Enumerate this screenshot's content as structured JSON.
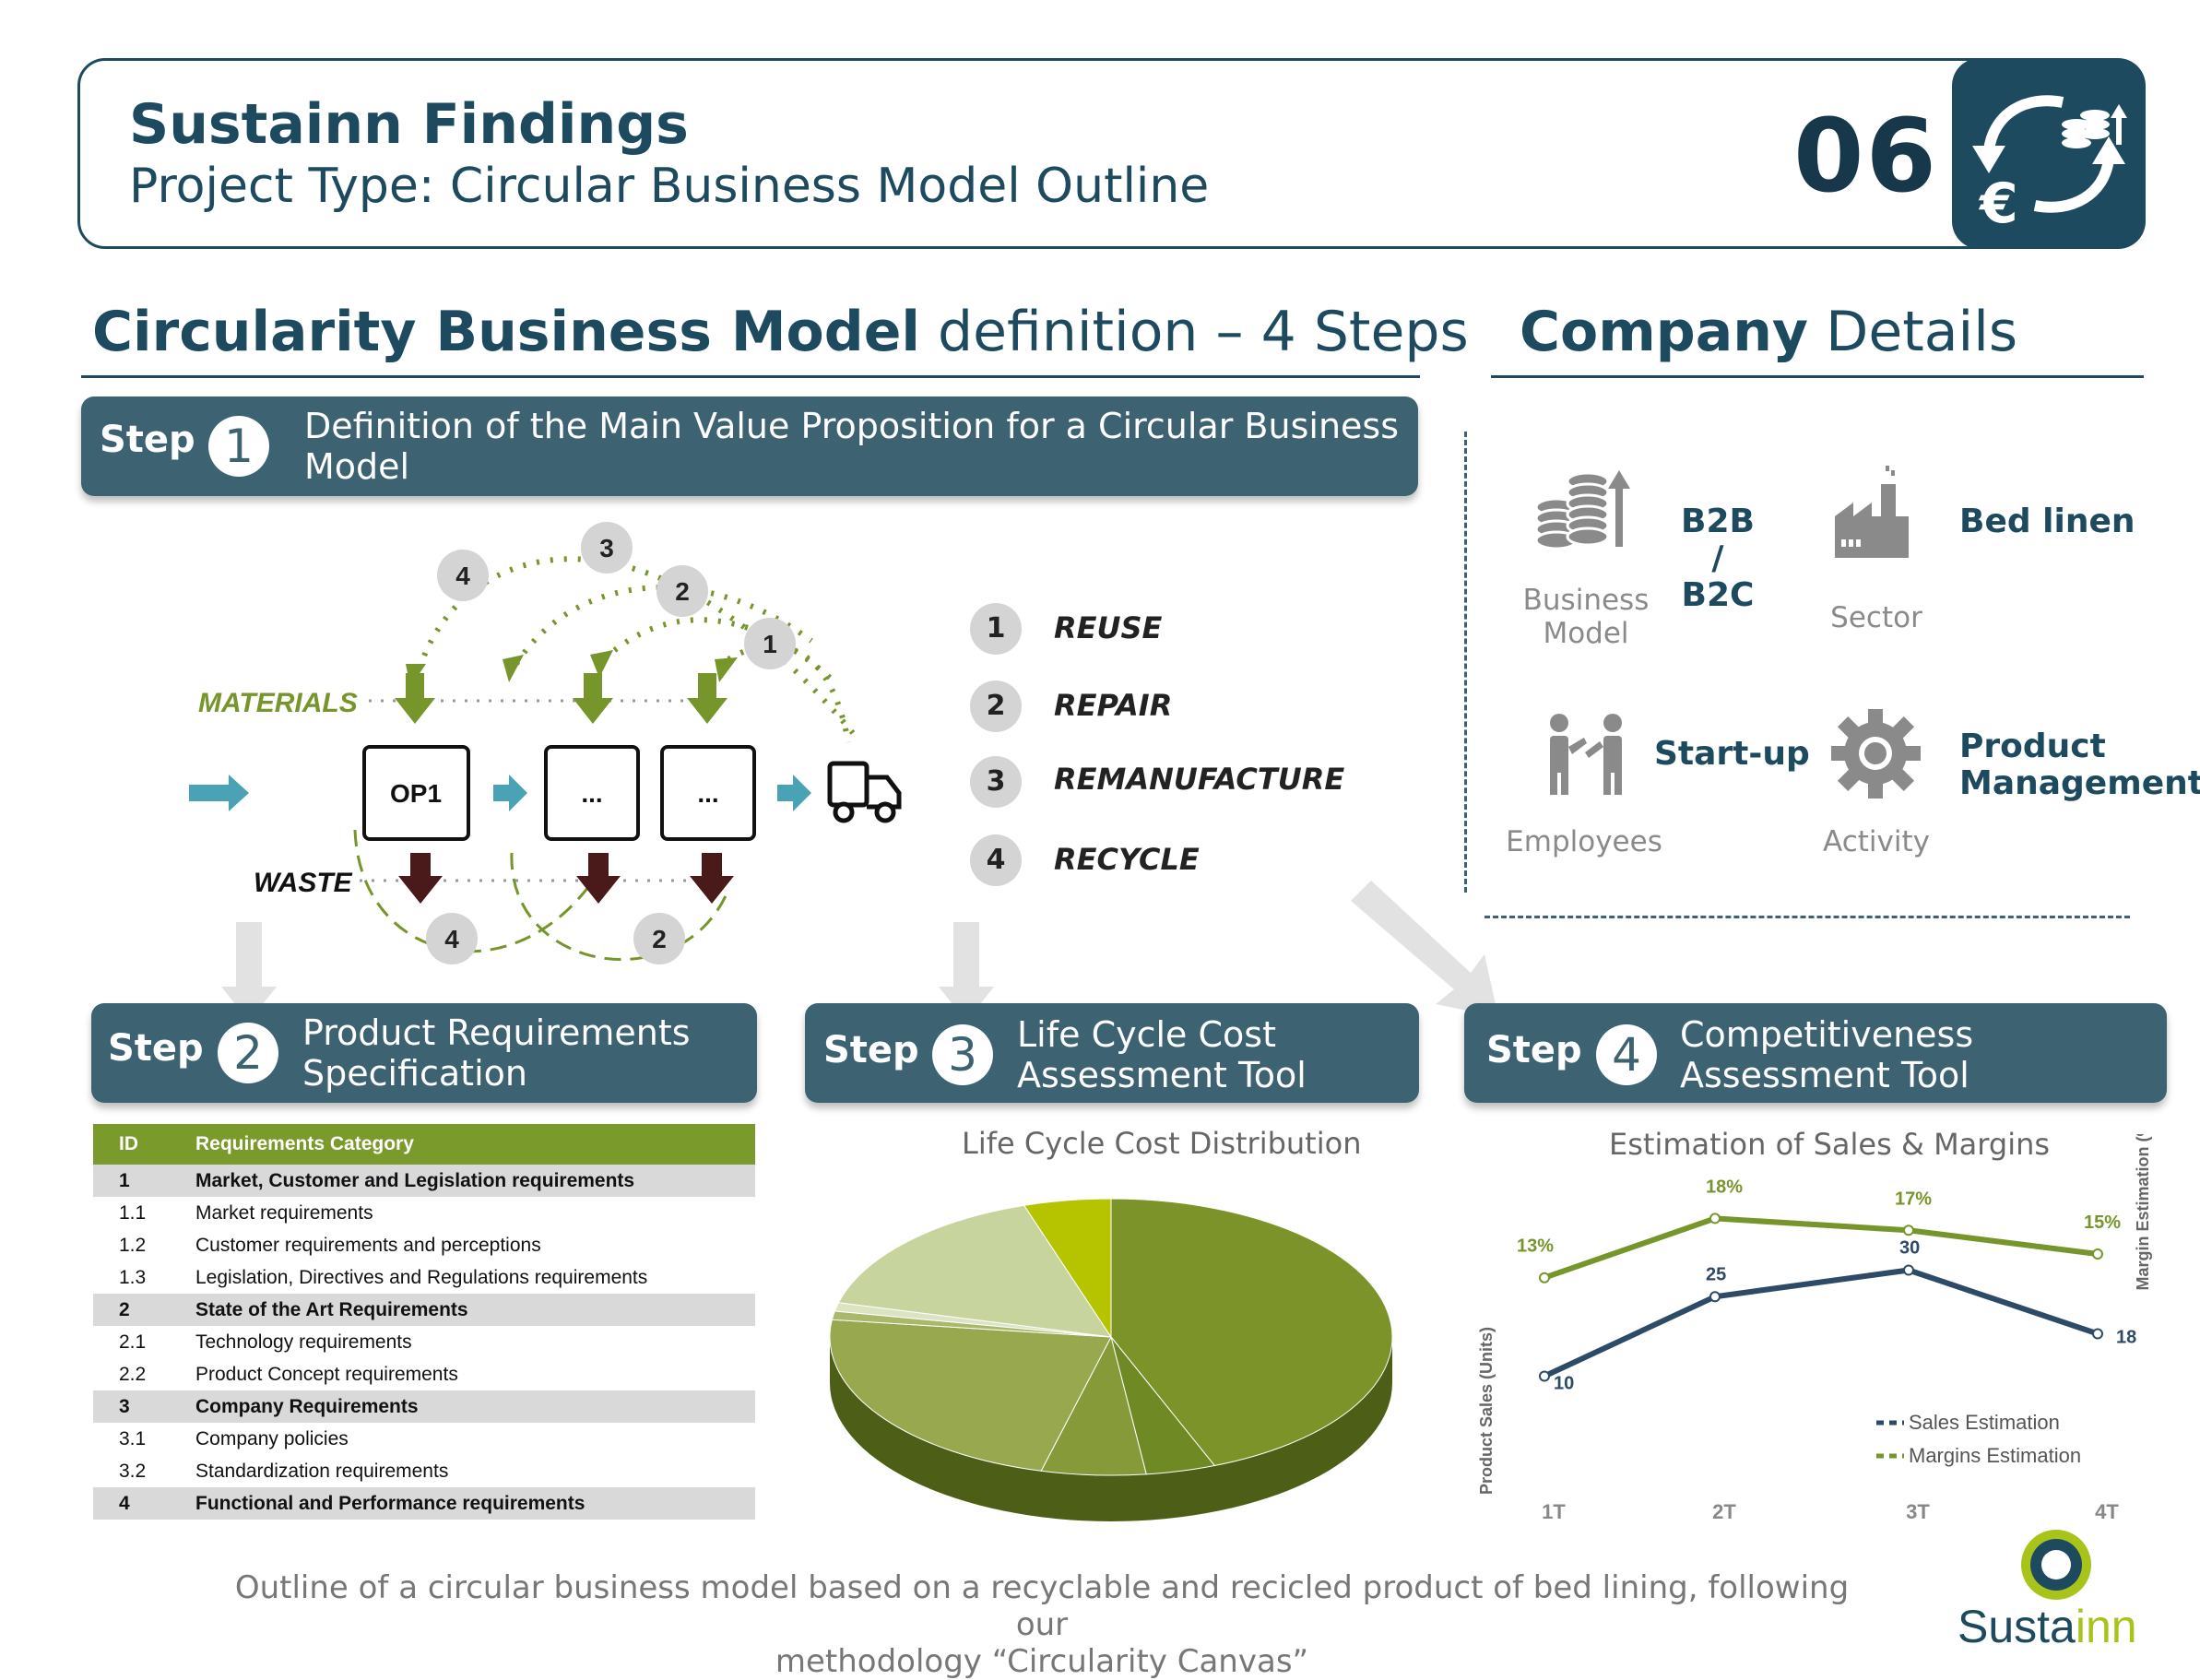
{
  "header": {
    "title": "Sustainn Findings",
    "subtitle": "Project Type: Circular Business Model Outline",
    "page_number": "06",
    "icon": "euro-circular-arrows-coins-icon"
  },
  "section_main": {
    "title_bold": "Circularity Business Model",
    "title_rest": " definition – 4 Steps"
  },
  "section_company": {
    "title_bold": "Company",
    "title_rest": " Details"
  },
  "step1": {
    "word": "Step",
    "number": "1",
    "text_line1": "Definition of the Main Value Proposition for a Circular Business",
    "text_line2": "Model"
  },
  "diagram": {
    "materials_label": "MATERIALS",
    "waste_label": "WASTE",
    "op1": "OP1",
    "op2": "...",
    "op3": "...",
    "top_circles": [
      "4",
      "3",
      "2",
      "1"
    ],
    "bottom_circles": [
      "4",
      "2"
    ],
    "legend": [
      {
        "num": "1",
        "label": "REUSE"
      },
      {
        "num": "2",
        "label": "REPAIR"
      },
      {
        "num": "3",
        "label": "REMANUFACTURE"
      },
      {
        "num": "4",
        "label": "RECYCLE"
      }
    ],
    "colors": {
      "green": "#76952a",
      "waste": "#4a1a1a",
      "flow": "#4aa3b4"
    }
  },
  "company": {
    "business_model_value_l1": "B2B /",
    "business_model_value_l2": "B2C",
    "business_model_label_l1": "Business",
    "business_model_label_l2": "Model",
    "sector_value": "Bed linen",
    "sector_label": "Sector",
    "employees_value": "Start-up",
    "employees_label": "Employees",
    "activity_value_l1": "Product",
    "activity_value_l2": "Management",
    "activity_label": "Activity"
  },
  "step2": {
    "word": "Step",
    "number": "2",
    "text_line1": "Product Requirements",
    "text_line2": "Specification"
  },
  "step3": {
    "word": "Step",
    "number": "3",
    "text_line1": "Life Cycle Cost",
    "text_line2": "Assessment Tool"
  },
  "step4": {
    "word": "Step",
    "number": "4",
    "text_line1": "Competitiveness",
    "text_line2": "Assessment Tool"
  },
  "requirements": {
    "header_id": "ID",
    "header_cat": "Requirements Category",
    "rows": [
      {
        "id": "1",
        "text": "Market, Customer and Legislation requirements",
        "cat": true
      },
      {
        "id": "1.1",
        "text": "Market requirements",
        "cat": false
      },
      {
        "id": "1.2",
        "text": "Customer requirements and perceptions",
        "cat": false
      },
      {
        "id": "1.3",
        "text": "Legislation, Directives and Regulations requirements",
        "cat": false
      },
      {
        "id": "2",
        "text": "State of the Art Requirements",
        "cat": true
      },
      {
        "id": "2.1",
        "text": "Technology requirements",
        "cat": false
      },
      {
        "id": "2.2",
        "text": "Product Concept requirements",
        "cat": false
      },
      {
        "id": "3",
        "text": "Company Requirements",
        "cat": true
      },
      {
        "id": "3.1",
        "text": "Company policies",
        "cat": false
      },
      {
        "id": "3.2",
        "text": "Standardization requirements",
        "cat": false
      },
      {
        "id": "4",
        "text": "Functional and Performance requirements",
        "cat": true
      }
    ]
  },
  "chart_data": [
    {
      "type": "pie",
      "title": "Life Cycle Cost Distribution",
      "values": [
        44,
        4,
        6,
        23,
        1,
        1,
        16,
        5
      ],
      "colors": [
        "#7b9328",
        "#6f8a24",
        "#869a3a",
        "#98a84f",
        "#a9b86a",
        "#dce3c2",
        "#c8d49e",
        "#b6c400"
      ]
    },
    {
      "type": "line",
      "title": "Estimation of Sales & Margins",
      "categories": [
        "1T",
        "2T",
        "3T",
        "4T"
      ],
      "ylabel": "Product Sales (Units)",
      "y2label": "Margin Estimation (%)",
      "series": [
        {
          "name": "Sales Estimation",
          "values": [
            10,
            25,
            30,
            18
          ],
          "labels": [
            "10",
            "25",
            "30",
            "18"
          ],
          "color": "#2d4a66"
        },
        {
          "name": "Margins Estimation",
          "values": [
            13,
            18,
            17,
            15
          ],
          "labels": [
            "13%",
            "18%",
            "17%",
            "15%"
          ],
          "color": "#76952a"
        }
      ]
    }
  ],
  "footer": {
    "text_line1": "Outline of a circular business model based on a recyclable and recicled product of bed lining, following our",
    "text_line2": "methodology “Circularity Canvas”",
    "logo_prefix": "Susta",
    "logo_suffix": "inn"
  }
}
